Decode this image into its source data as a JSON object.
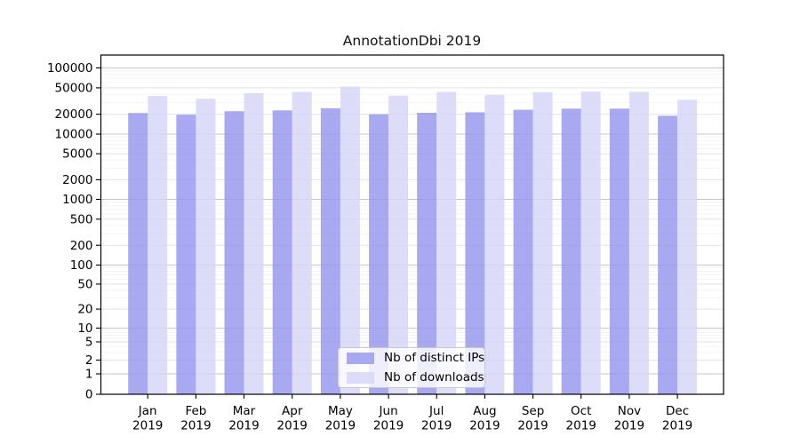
{
  "figure": {
    "title": "AnnotationDbi 2019"
  },
  "chart_data": {
    "type": "bar",
    "title": "AnnotationDbi 2019",
    "categories": [
      "Jan 2019",
      "Feb 2019",
      "Mar 2019",
      "Apr 2019",
      "May 2019",
      "Jun 2019",
      "Jul 2019",
      "Aug 2019",
      "Sep 2019",
      "Oct 2019",
      "Nov 2019",
      "Dec 2019"
    ],
    "series": [
      {
        "name": "Nb of distinct IPs",
        "color": "#9494ef",
        "values": [
          20800,
          19600,
          22200,
          22800,
          24600,
          19900,
          21000,
          21400,
          23300,
          24300,
          24300,
          18900
        ]
      },
      {
        "name": "Nb of downloads",
        "color": "#d4d4f8",
        "values": [
          37600,
          34300,
          41600,
          43400,
          52300,
          38100,
          43400,
          39100,
          42900,
          43900,
          43600,
          33100
        ]
      }
    ],
    "y_axis": {
      "scale": "symlog",
      "ticks": [
        0,
        1,
        2,
        5,
        10,
        20,
        50,
        100,
        200,
        500,
        1000,
        2000,
        5000,
        10000,
        20000,
        50000,
        100000
      ],
      "ylim": [
        0,
        160000
      ]
    },
    "x_axis": {
      "tick_label_second_line": "2019"
    },
    "grid": true,
    "legend": {
      "position": "lower center inside"
    },
    "colors": {
      "major_grid": "#c6c6c6",
      "labeled_grid": "#e2e2e2",
      "minor_grid": "#f0f0f0",
      "axis": "#000000"
    }
  }
}
